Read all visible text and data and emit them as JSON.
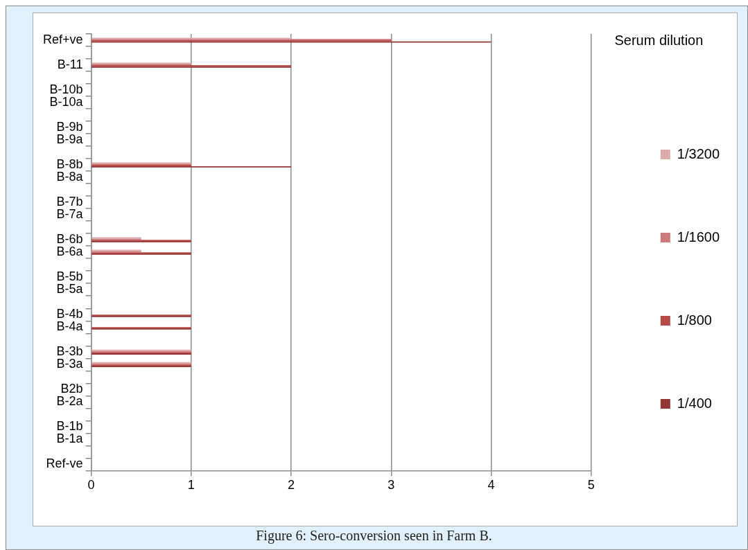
{
  "chart_data": {
    "type": "bar",
    "orientation": "horizontal",
    "legend_title": "Serum dilution",
    "legend": "right",
    "grid": "x",
    "categories": [
      "Ref+ve",
      null,
      "B-11",
      null,
      "B-10b",
      "B-10a",
      null,
      "B-9b",
      "B-9a",
      null,
      "B-8b",
      "B-8a",
      null,
      "B-7b",
      "B-7a",
      null,
      "B-6b",
      "B-6a",
      null,
      "B-5b",
      "B-5a",
      null,
      "B-4b",
      "B-4a",
      null,
      "B-3b",
      "B-3a",
      null,
      "B2b",
      "B-2a",
      null,
      "B-1b",
      "B-1a",
      null,
      "Ref-ve"
    ],
    "series": [
      {
        "name": "1/3200",
        "color": "#dbaaa9",
        "values": [
          2,
          0,
          1,
          0,
          0,
          0,
          0,
          0,
          0,
          0,
          1,
          0,
          0,
          0,
          0,
          0,
          0.5,
          0.5,
          0,
          0,
          0,
          0,
          0,
          0,
          0,
          1,
          1,
          0,
          0,
          0,
          0,
          0,
          0,
          0,
          0
        ]
      },
      {
        "name": "1/1600",
        "color": "#cd7b7a",
        "values": [
          3,
          0,
          1,
          0,
          0,
          0,
          0,
          0,
          0,
          0,
          1,
          0,
          0,
          0,
          0,
          0,
          0.5,
          0.5,
          0,
          0,
          0,
          0,
          0,
          0,
          0,
          1,
          1,
          0,
          0,
          0,
          0,
          0,
          0,
          0,
          0
        ]
      },
      {
        "name": "1/800",
        "color": "#b84a48",
        "values": [
          3,
          0,
          2,
          0,
          0,
          0,
          0,
          0,
          0,
          0,
          1,
          0,
          0,
          0,
          0,
          0,
          1,
          1,
          0,
          0,
          0,
          0,
          1,
          1,
          0,
          1,
          1,
          0,
          0,
          0,
          0,
          0,
          0,
          0,
          0
        ]
      },
      {
        "name": "1/400",
        "color": "#943634",
        "values": [
          4,
          0,
          2,
          0,
          0,
          0,
          0,
          0,
          0,
          0,
          2,
          0,
          0,
          0,
          0,
          0,
          1,
          1,
          0,
          0,
          0,
          0,
          1,
          1,
          0,
          1,
          1,
          0,
          0,
          0,
          0,
          0,
          0,
          0,
          0
        ]
      }
    ],
    "xlim": [
      0,
      5
    ],
    "xticks": [
      0,
      1,
      2,
      3,
      4,
      5
    ],
    "annotations": [
      "Figure 6: Sero-conversion seen in Farm B."
    ]
  }
}
